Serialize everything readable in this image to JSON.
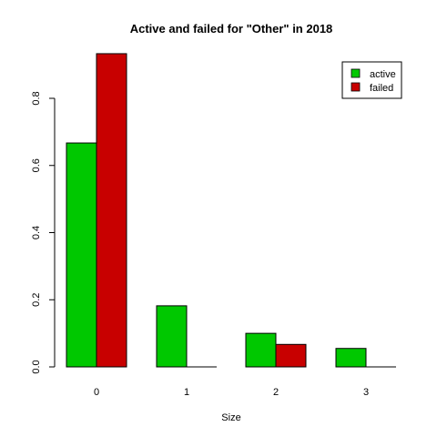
{
  "chart_data": {
    "type": "bar",
    "title": "Active and failed for \"Other\" in 2018",
    "xlabel": "Size",
    "ylabel": "",
    "categories": [
      "0",
      "1",
      "2",
      "3"
    ],
    "series": [
      {
        "name": "active",
        "color": "#00c800",
        "values": [
          0.667,
          0.182,
          0.1,
          0.055
        ]
      },
      {
        "name": "failed",
        "color": "#c80000",
        "values": [
          0.933,
          0,
          0.067,
          0
        ]
      }
    ],
    "ylim": [
      0,
      0.95
    ],
    "yticks": [
      "0.0",
      "0.2",
      "0.4",
      "0.6",
      "0.8"
    ],
    "legend_position": "top-right",
    "grid": false
  }
}
